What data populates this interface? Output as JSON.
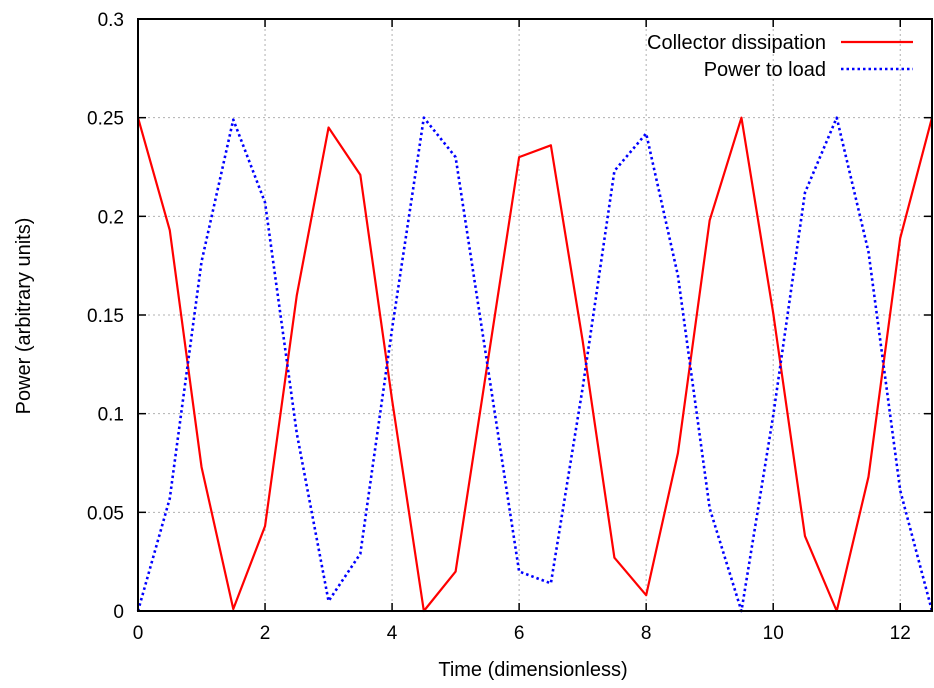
{
  "chart_data": {
    "type": "line",
    "title": "",
    "xlabel": "Time (dimensionless)",
    "ylabel": "Power (arbitrary units)",
    "xlim": [
      0,
      12.5
    ],
    "ylim": [
      0,
      0.3
    ],
    "xticks": [
      0,
      2,
      4,
      6,
      8,
      10,
      12
    ],
    "xtick_labels": [
      "0",
      "2",
      "4",
      "6",
      "8",
      "10",
      "12"
    ],
    "yticks": [
      0,
      0.05,
      0.1,
      0.15,
      0.2,
      0.25,
      0.3
    ],
    "ytick_labels": [
      "0",
      "0.05",
      "0.1",
      "0.15",
      "0.2",
      "0.25",
      "0.3"
    ],
    "grid": true,
    "legend_position": "top-right",
    "x": [
      0,
      0.5,
      1,
      1.5,
      2,
      2.5,
      3,
      3.5,
      4,
      4.5,
      5,
      5.5,
      6,
      6.5,
      7,
      7.5,
      8,
      8.5,
      9,
      9.5,
      10,
      10.5,
      11,
      11.5,
      12,
      12.5
    ],
    "series": [
      {
        "name": "Collector dissipation",
        "color": "#ff0000",
        "style": "solid",
        "values": [
          0.25,
          0.193,
          0.073,
          0.001,
          0.043,
          0.16,
          0.245,
          0.221,
          0.107,
          0.0,
          0.02,
          0.125,
          0.23,
          0.236,
          0.137,
          0.027,
          0.008,
          0.08,
          0.198,
          0.25,
          0.151,
          0.038,
          0.0,
          0.068,
          0.189,
          0.25
        ]
      },
      {
        "name": "Power to load",
        "color": "#0000ff",
        "style": "dotted",
        "values": [
          0.0,
          0.057,
          0.177,
          0.249,
          0.207,
          0.09,
          0.005,
          0.029,
          0.143,
          0.25,
          0.23,
          0.125,
          0.02,
          0.014,
          0.113,
          0.223,
          0.242,
          0.17,
          0.052,
          0.0,
          0.099,
          0.212,
          0.25,
          0.182,
          0.061,
          0.0
        ]
      }
    ]
  }
}
